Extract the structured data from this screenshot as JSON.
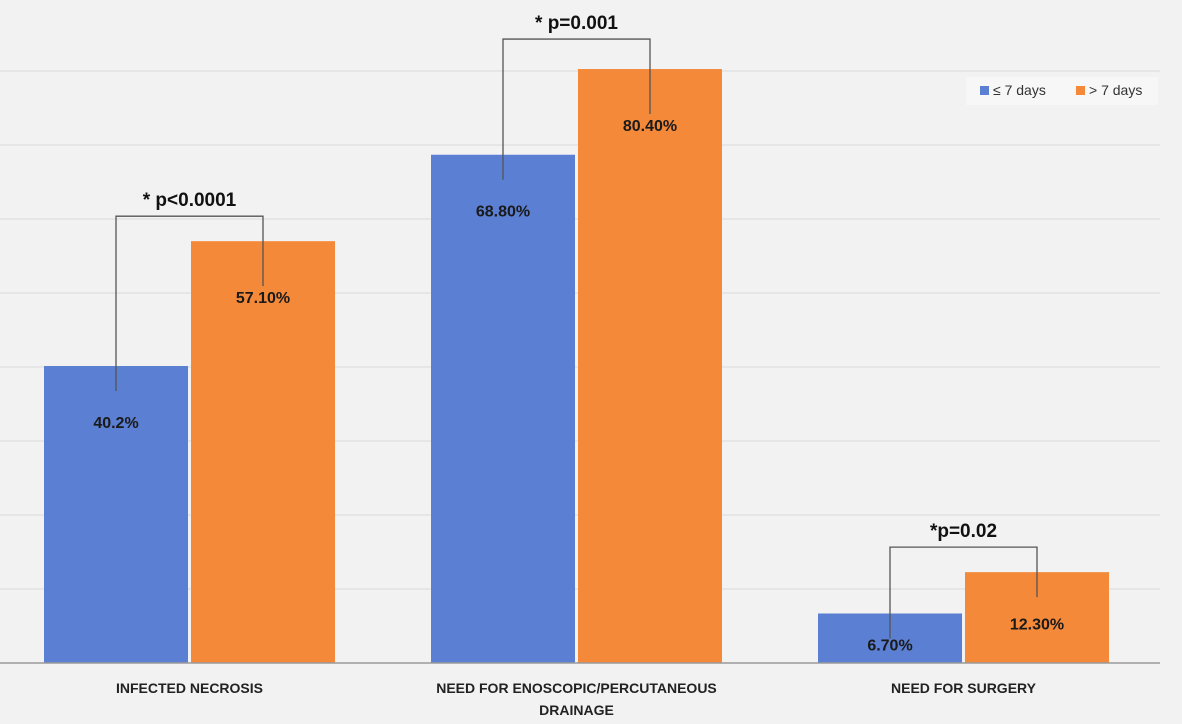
{
  "chart_data": {
    "type": "bar",
    "categories": [
      [
        "INFECTED NECROSIS"
      ],
      [
        "NEED FOR ENOSCOPIC/PERCUTANEOUS",
        "DRAINAGE"
      ],
      [
        "NEED FOR SURGERY"
      ]
    ],
    "series": [
      {
        "name": "≤ 7 days",
        "color": "#5b7fd2",
        "values": [
          40.2,
          68.8,
          6.7
        ],
        "labels": [
          "40.2%",
          "68.80%",
          "6.70%"
        ]
      },
      {
        "name": "> 7 days",
        "color": "#f5893a",
        "values": [
          57.1,
          80.4,
          12.3
        ],
        "labels": [
          "57.10%",
          "80.40%",
          "12.30%"
        ]
      }
    ],
    "annotations": [
      "* p<0.0001",
      "* p=0.001",
      "*p=0.02"
    ],
    "ylim": [
      0,
      80
    ],
    "grid": true,
    "legend_position": "top-right"
  }
}
